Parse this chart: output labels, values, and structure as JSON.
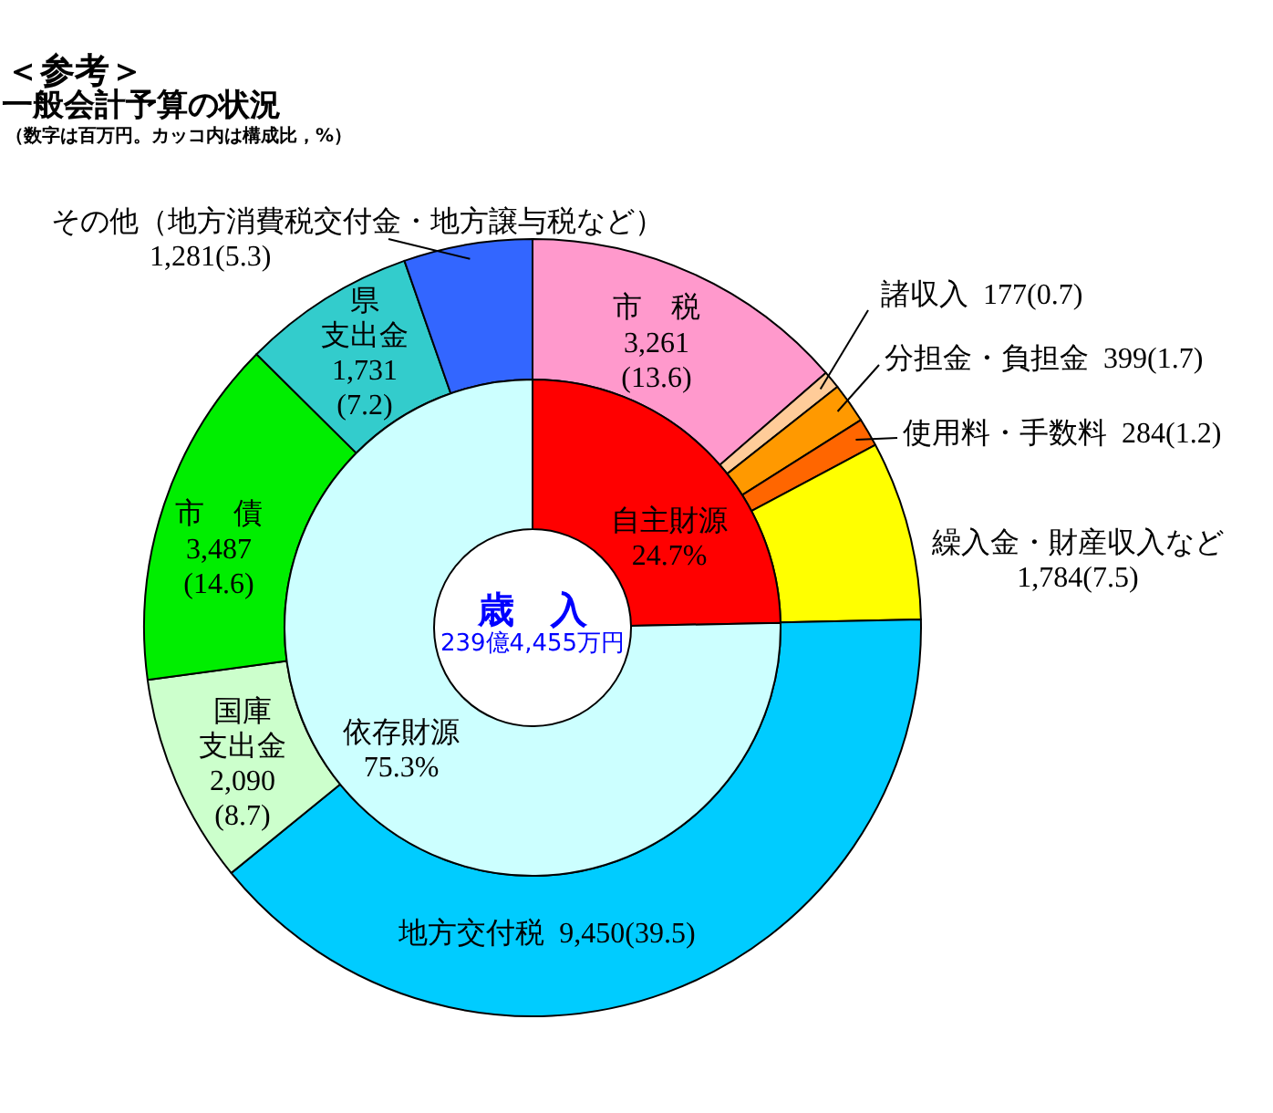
{
  "chart_data": [
    {
      "type": "donut",
      "title": "一般会計予算の状況",
      "subtitle": "（数字は百万円。カッコ内は構成比，%）",
      "annotations": [
        "＜参考＞"
      ],
      "categories": [
        "市　税",
        "諸収入",
        "分担金・負担金",
        "使用料・手数料",
        "繰入金・財産収入など",
        "地方交付税",
        "国庫支出金",
        "市　債",
        "県支出金",
        "その他（地方消費税交付金・地方譲与税など）"
      ],
      "values": [
        3261,
        177,
        399,
        284,
        1784,
        9450,
        2090,
        3487,
        1731,
        1281
      ],
      "value_labels": [
        "3,261(13.6)",
        "177(0.7)",
        "399(1.7)",
        "284(1.2)",
        "1,784(7.5)",
        "9,450(39.5)",
        "2,090(8.7)",
        "3,487(14.6)",
        "1,731(7.2)",
        "1,281(5.3)"
      ],
      "colors": [
        "#ff99cc",
        "#ffcc99",
        "#ff9900",
        "#ff6600",
        "#ffff00",
        "#00ccff",
        "#ccffcc",
        "#00ee00",
        "#33cccc",
        "#3366ff"
      ]
    },
    {
      "type": "donut",
      "annotations": [
        "歳　入",
        "239億4,455万円"
      ],
      "categories": [
        "自主財源",
        "依存財源"
      ],
      "values": [
        24.7,
        75.3
      ],
      "value_labels": [
        "24.7%",
        "75.3%"
      ],
      "colors": [
        "#ff0000",
        "#ccffff"
      ]
    }
  ]
}
